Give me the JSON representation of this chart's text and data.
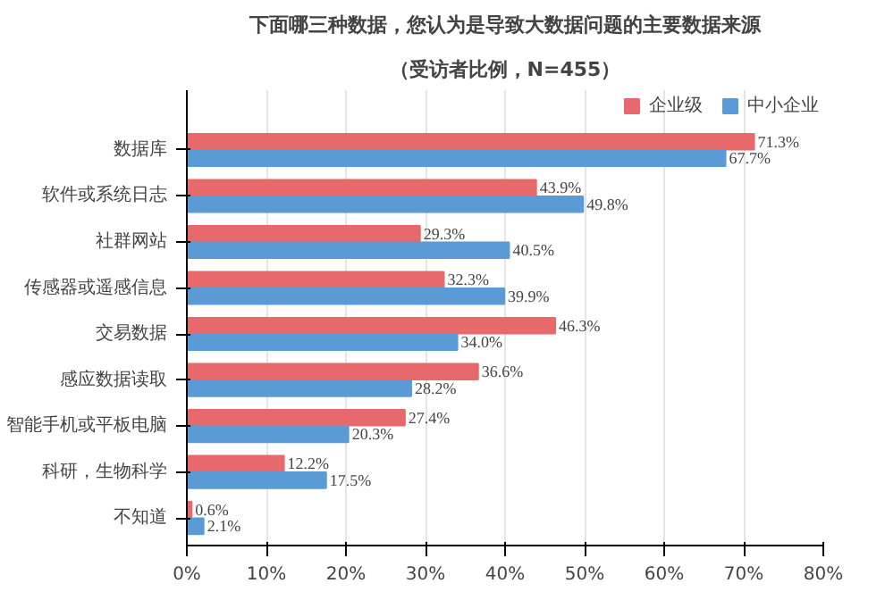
{
  "chart_data": {
    "type": "bar",
    "orientation": "horizontal",
    "title": "下面哪三种数据，您认为是导致大数据问题的主要数据来源",
    "subtitle": "（受访者比例，N=455）",
    "categories": [
      "数据库",
      "软件或系统日志",
      "社群网站",
      "传感器或遥感信息",
      "交易数据",
      "感应数据读取",
      "智能手机或平板电脑",
      "科研，生物科学",
      "不知道"
    ],
    "series": [
      {
        "name": "企业级",
        "color": "#e8696b",
        "values": [
          71.3,
          43.9,
          29.3,
          32.3,
          46.3,
          36.6,
          27.4,
          12.2,
          0.6
        ],
        "value_labels": [
          "71.3%",
          "43.9%",
          "29.3%",
          "32.3%",
          "46.3%",
          "36.6%",
          "27.4%",
          "12.2%",
          "0.6%"
        ]
      },
      {
        "name": "中小企业",
        "color": "#5b9bd5",
        "values": [
          67.7,
          49.8,
          40.5,
          39.9,
          34.0,
          28.2,
          20.3,
          17.5,
          2.1
        ],
        "value_labels": [
          "67.7%",
          "49.8%",
          "40.5%",
          "39.9%",
          "34.0%",
          "28.2%",
          "20.3%",
          "17.5%",
          "2.1%"
        ]
      }
    ],
    "xlim": [
      0,
      80
    ],
    "xticks": [
      {
        "value": 0,
        "label": "0%"
      },
      {
        "value": 10,
        "label": "10%"
      },
      {
        "value": 20,
        "label": "20%"
      },
      {
        "value": 30,
        "label": "30%"
      },
      {
        "value": 40,
        "label": "40%"
      },
      {
        "value": 50,
        "label": "50%"
      },
      {
        "value": 60,
        "label": "60%"
      },
      {
        "value": 70,
        "label": "70%"
      },
      {
        "value": 80,
        "label": "80%"
      }
    ],
    "grid": "x",
    "legend": "top right"
  }
}
